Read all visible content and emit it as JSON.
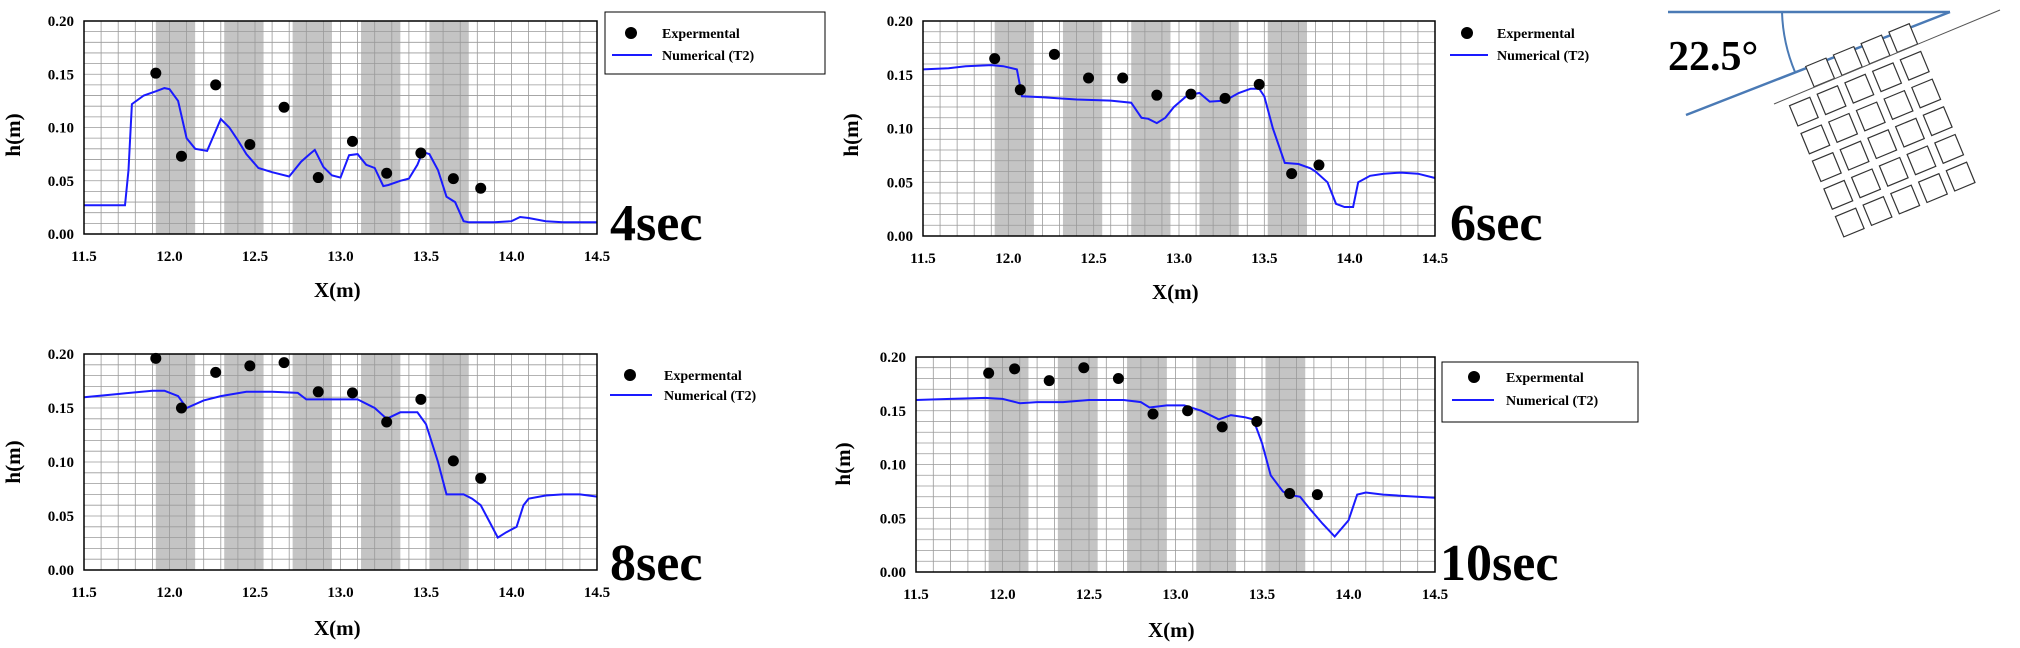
{
  "figure": {
    "angle_label": "22.5°"
  },
  "chart_data": [
    {
      "type": "line",
      "panel": "top-left",
      "time_label": "4sec",
      "xlabel": "X(m)",
      "ylabel": "h(m)",
      "xlim": [
        11.5,
        14.5
      ],
      "ylim": [
        0,
        0.2
      ],
      "xticks": [
        "11.5",
        "12.0",
        "12.5",
        "13.0",
        "13.5",
        "14.0",
        "14.5"
      ],
      "yticks": [
        "0.00",
        "0.05",
        "0.10",
        "0.15",
        "0.20"
      ],
      "bands": [
        [
          11.92,
          12.15
        ],
        [
          12.32,
          12.55
        ],
        [
          12.72,
          12.95
        ],
        [
          13.12,
          13.35
        ],
        [
          13.52,
          13.75
        ]
      ],
      "legend": {
        "experimental": "Expermental",
        "numerical": "Numerical (T2)"
      },
      "series": [
        {
          "name": "Expermental",
          "kind": "markers",
          "x": [
            11.92,
            12.07,
            12.27,
            12.47,
            12.67,
            12.87,
            13.07,
            13.27,
            13.47,
            13.66,
            13.82
          ],
          "y": [
            0.151,
            0.073,
            0.14,
            0.084,
            0.119,
            0.053,
            0.087,
            0.057,
            0.076,
            0.052,
            0.043
          ]
        },
        {
          "name": "Numerical (T2)",
          "kind": "line",
          "x": [
            11.5,
            11.74,
            11.76,
            11.78,
            11.85,
            11.92,
            11.97,
            12.0,
            12.05,
            12.1,
            12.15,
            12.22,
            12.3,
            12.35,
            12.4,
            12.45,
            12.52,
            12.6,
            12.7,
            12.77,
            12.82,
            12.85,
            12.9,
            12.95,
            13.0,
            13.05,
            13.1,
            13.15,
            13.2,
            13.25,
            13.28,
            13.35,
            13.4,
            13.45,
            13.48,
            13.52,
            13.57,
            13.62,
            13.67,
            13.72,
            13.75,
            13.9,
            14.0,
            14.05,
            14.1,
            14.2,
            14.3,
            14.5
          ],
          "y": [
            0.027,
            0.027,
            0.06,
            0.122,
            0.13,
            0.134,
            0.137,
            0.136,
            0.125,
            0.09,
            0.08,
            0.078,
            0.108,
            0.1,
            0.088,
            0.075,
            0.062,
            0.058,
            0.054,
            0.068,
            0.075,
            0.079,
            0.063,
            0.055,
            0.053,
            0.074,
            0.075,
            0.065,
            0.062,
            0.045,
            0.046,
            0.05,
            0.052,
            0.065,
            0.077,
            0.075,
            0.06,
            0.035,
            0.03,
            0.012,
            0.011,
            0.011,
            0.012,
            0.016,
            0.015,
            0.012,
            0.011,
            0.011
          ]
        }
      ]
    },
    {
      "type": "line",
      "panel": "top-right",
      "time_label": "6sec",
      "xlabel": "X(m)",
      "ylabel": "h(m)",
      "xlim": [
        11.5,
        14.5
      ],
      "ylim": [
        0,
        0.2
      ],
      "xticks": [
        "11.5",
        "12.0",
        "12.5",
        "13.0",
        "13.5",
        "14.0",
        "14.5"
      ],
      "yticks": [
        "0.00",
        "0.05",
        "0.10",
        "0.15",
        "0.20"
      ],
      "bands": [
        [
          11.92,
          12.15
        ],
        [
          12.32,
          12.55
        ],
        [
          12.72,
          12.95
        ],
        [
          13.12,
          13.35
        ],
        [
          13.52,
          13.75
        ]
      ],
      "legend": {
        "experimental": "Expermental",
        "numerical": "Numerical (T2)"
      },
      "series": [
        {
          "name": "Expermental",
          "kind": "markers",
          "x": [
            11.92,
            12.07,
            12.27,
            12.47,
            12.67,
            12.87,
            13.07,
            13.27,
            13.47,
            13.66,
            13.82
          ],
          "y": [
            0.165,
            0.136,
            0.169,
            0.147,
            0.147,
            0.131,
            0.132,
            0.128,
            0.141,
            0.058,
            0.066
          ]
        },
        {
          "name": "Numerical (T2)",
          "kind": "line",
          "x": [
            11.5,
            11.65,
            11.75,
            11.9,
            11.97,
            12.05,
            12.08,
            12.2,
            12.4,
            12.6,
            12.72,
            12.78,
            12.82,
            12.87,
            12.92,
            12.97,
            13.05,
            13.12,
            13.18,
            13.27,
            13.35,
            13.42,
            13.47,
            13.5,
            13.55,
            13.62,
            13.7,
            13.77,
            13.8,
            13.87,
            13.92,
            13.97,
            14.02,
            14.05,
            14.12,
            14.2,
            14.3,
            14.4,
            14.5
          ],
          "y": [
            0.155,
            0.156,
            0.158,
            0.159,
            0.158,
            0.155,
            0.13,
            0.129,
            0.127,
            0.126,
            0.124,
            0.11,
            0.109,
            0.105,
            0.11,
            0.12,
            0.131,
            0.133,
            0.125,
            0.126,
            0.133,
            0.137,
            0.137,
            0.13,
            0.1,
            0.068,
            0.067,
            0.063,
            0.06,
            0.05,
            0.03,
            0.027,
            0.027,
            0.05,
            0.056,
            0.058,
            0.059,
            0.058,
            0.054
          ]
        }
      ]
    },
    {
      "type": "line",
      "panel": "bottom-left",
      "time_label": "8sec",
      "xlabel": "X(m)",
      "ylabel": "h(m)",
      "xlim": [
        11.5,
        14.5
      ],
      "ylim": [
        0,
        0.2
      ],
      "xticks": [
        "11.5",
        "12.0",
        "12.5",
        "13.0",
        "13.5",
        "14.0",
        "14.5"
      ],
      "yticks": [
        "0.00",
        "0.05",
        "0.10",
        "0.15",
        "0.20"
      ],
      "bands": [
        [
          11.92,
          12.15
        ],
        [
          12.32,
          12.55
        ],
        [
          12.72,
          12.95
        ],
        [
          13.12,
          13.35
        ],
        [
          13.52,
          13.75
        ]
      ],
      "legend": {
        "experimental": "Expermental",
        "numerical": "Numerical (T2)"
      },
      "series": [
        {
          "name": "Expermental",
          "kind": "markers",
          "x": [
            11.92,
            12.07,
            12.27,
            12.47,
            12.67,
            12.87,
            13.07,
            13.27,
            13.47,
            13.66,
            13.82
          ],
          "y": [
            0.196,
            0.15,
            0.183,
            0.189,
            0.192,
            0.165,
            0.164,
            0.137,
            0.158,
            0.101,
            0.085
          ]
        },
        {
          "name": "Numerical (T2)",
          "kind": "line",
          "x": [
            11.5,
            11.7,
            11.9,
            11.97,
            12.05,
            12.1,
            12.2,
            12.3,
            12.45,
            12.6,
            12.75,
            12.8,
            12.85,
            13.0,
            13.1,
            13.2,
            13.27,
            13.35,
            13.45,
            13.5,
            13.57,
            13.62,
            13.72,
            13.77,
            13.82,
            13.87,
            13.92,
            13.97,
            14.03,
            14.07,
            14.1,
            14.2,
            14.3,
            14.4,
            14.5
          ],
          "y": [
            0.16,
            0.163,
            0.166,
            0.166,
            0.161,
            0.15,
            0.157,
            0.161,
            0.165,
            0.165,
            0.164,
            0.158,
            0.158,
            0.158,
            0.158,
            0.15,
            0.14,
            0.146,
            0.146,
            0.135,
            0.1,
            0.07,
            0.07,
            0.066,
            0.06,
            0.045,
            0.03,
            0.035,
            0.04,
            0.06,
            0.066,
            0.069,
            0.07,
            0.07,
            0.068
          ]
        }
      ]
    },
    {
      "type": "line",
      "panel": "bottom-right",
      "time_label": "10sec",
      "xlabel": "X(m)",
      "ylabel": "h(m)",
      "xlim": [
        11.5,
        14.5
      ],
      "ylim": [
        0,
        0.2
      ],
      "xticks": [
        "11.5",
        "12.0",
        "12.5",
        "13.0",
        "13.5",
        "14.0",
        "14.5"
      ],
      "yticks": [
        "0.00",
        "0.05",
        "0.10",
        "0.15",
        "0.20"
      ],
      "bands": [
        [
          11.92,
          12.15
        ],
        [
          12.32,
          12.55
        ],
        [
          12.72,
          12.95
        ],
        [
          13.12,
          13.35
        ],
        [
          13.52,
          13.75
        ]
      ],
      "legend": {
        "experimental": "Expermental",
        "numerical": "Numerical (T2)"
      },
      "series": [
        {
          "name": "Expermental",
          "kind": "markers",
          "x": [
            11.92,
            12.07,
            12.27,
            12.47,
            12.67,
            12.87,
            13.07,
            13.27,
            13.47,
            13.66,
            13.82
          ],
          "y": [
            0.185,
            0.189,
            0.178,
            0.19,
            0.18,
            0.147,
            0.15,
            0.135,
            0.14,
            0.073,
            0.072
          ]
        },
        {
          "name": "Numerical (T2)",
          "kind": "line",
          "x": [
            11.5,
            11.7,
            11.9,
            12.0,
            12.1,
            12.2,
            12.35,
            12.5,
            12.7,
            12.8,
            12.85,
            12.95,
            13.05,
            13.15,
            13.25,
            13.32,
            13.4,
            13.45,
            13.5,
            13.55,
            13.62,
            13.65,
            13.72,
            13.77,
            13.85,
            13.92,
            14.0,
            14.05,
            14.1,
            14.2,
            14.3,
            14.4,
            14.5
          ],
          "y": [
            0.16,
            0.161,
            0.162,
            0.161,
            0.157,
            0.158,
            0.158,
            0.16,
            0.16,
            0.158,
            0.153,
            0.155,
            0.155,
            0.15,
            0.142,
            0.146,
            0.144,
            0.142,
            0.12,
            0.09,
            0.075,
            0.072,
            0.07,
            0.06,
            0.045,
            0.033,
            0.048,
            0.072,
            0.074,
            0.072,
            0.071,
            0.07,
            0.069
          ]
        }
      ]
    }
  ]
}
